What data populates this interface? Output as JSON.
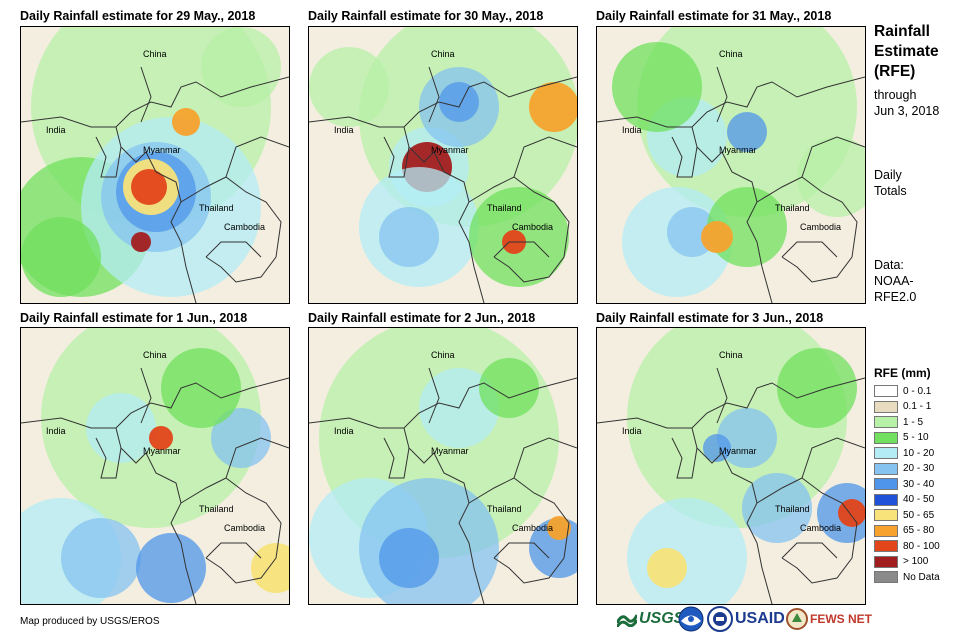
{
  "panels": [
    {
      "title": "Daily Rainfall estimate for 29 May., 2018"
    },
    {
      "title": "Daily Rainfall estimate for 30 May., 2018"
    },
    {
      "title": "Daily Rainfall estimate for 31 May., 2018"
    },
    {
      "title": "Daily Rainfall estimate for 1 Jun., 2018"
    },
    {
      "title": "Daily Rainfall estimate for 2 Jun., 2018"
    },
    {
      "title": "Daily Rainfall estimate for 3 Jun., 2018"
    }
  ],
  "map_labels": {
    "china": "China",
    "india": "India",
    "myanmar": "Myanmar",
    "thailand": "Thailand",
    "cambodia": "Cambodia"
  },
  "sidebar": {
    "title_line1": "Rainfall",
    "title_line2": "Estimate",
    "title_line3": "(RFE)",
    "through": "through",
    "date": "Jun 3, 2018",
    "daily": "Daily",
    "totals": "Totals",
    "data_label": "Data:",
    "data_line1": "NOAA-",
    "data_line2": "RFE2.0"
  },
  "legend": {
    "title": "RFE (mm)",
    "items": [
      {
        "label": "0 - 0.1",
        "color": "#ffffff"
      },
      {
        "label": "0.1 - 1",
        "color": "#e8dcc0"
      },
      {
        "label": "1 - 5",
        "color": "#b7f0a7"
      },
      {
        "label": "5 - 10",
        "color": "#70e05e"
      },
      {
        "label": "10 - 20",
        "color": "#b3ecf5"
      },
      {
        "label": "20 - 30",
        "color": "#86c3f0"
      },
      {
        "label": "30 - 40",
        "color": "#4f95ea"
      },
      {
        "label": "40 - 50",
        "color": "#1f52d8"
      },
      {
        "label": "50 - 65",
        "color": "#f7e37a"
      },
      {
        "label": "65 - 80",
        "color": "#f6a22d"
      },
      {
        "label": "80 - 100",
        "color": "#e2451a"
      },
      {
        "label": "> 100",
        "color": "#a21d1d"
      },
      {
        "label": "No Data",
        "color": "#8a8a8a"
      }
    ]
  },
  "footer": {
    "credit": "Map produced by USGS/EROS",
    "usgs": "USGS",
    "usaid": "USAID",
    "fewsnet": "FEWS NET"
  }
}
